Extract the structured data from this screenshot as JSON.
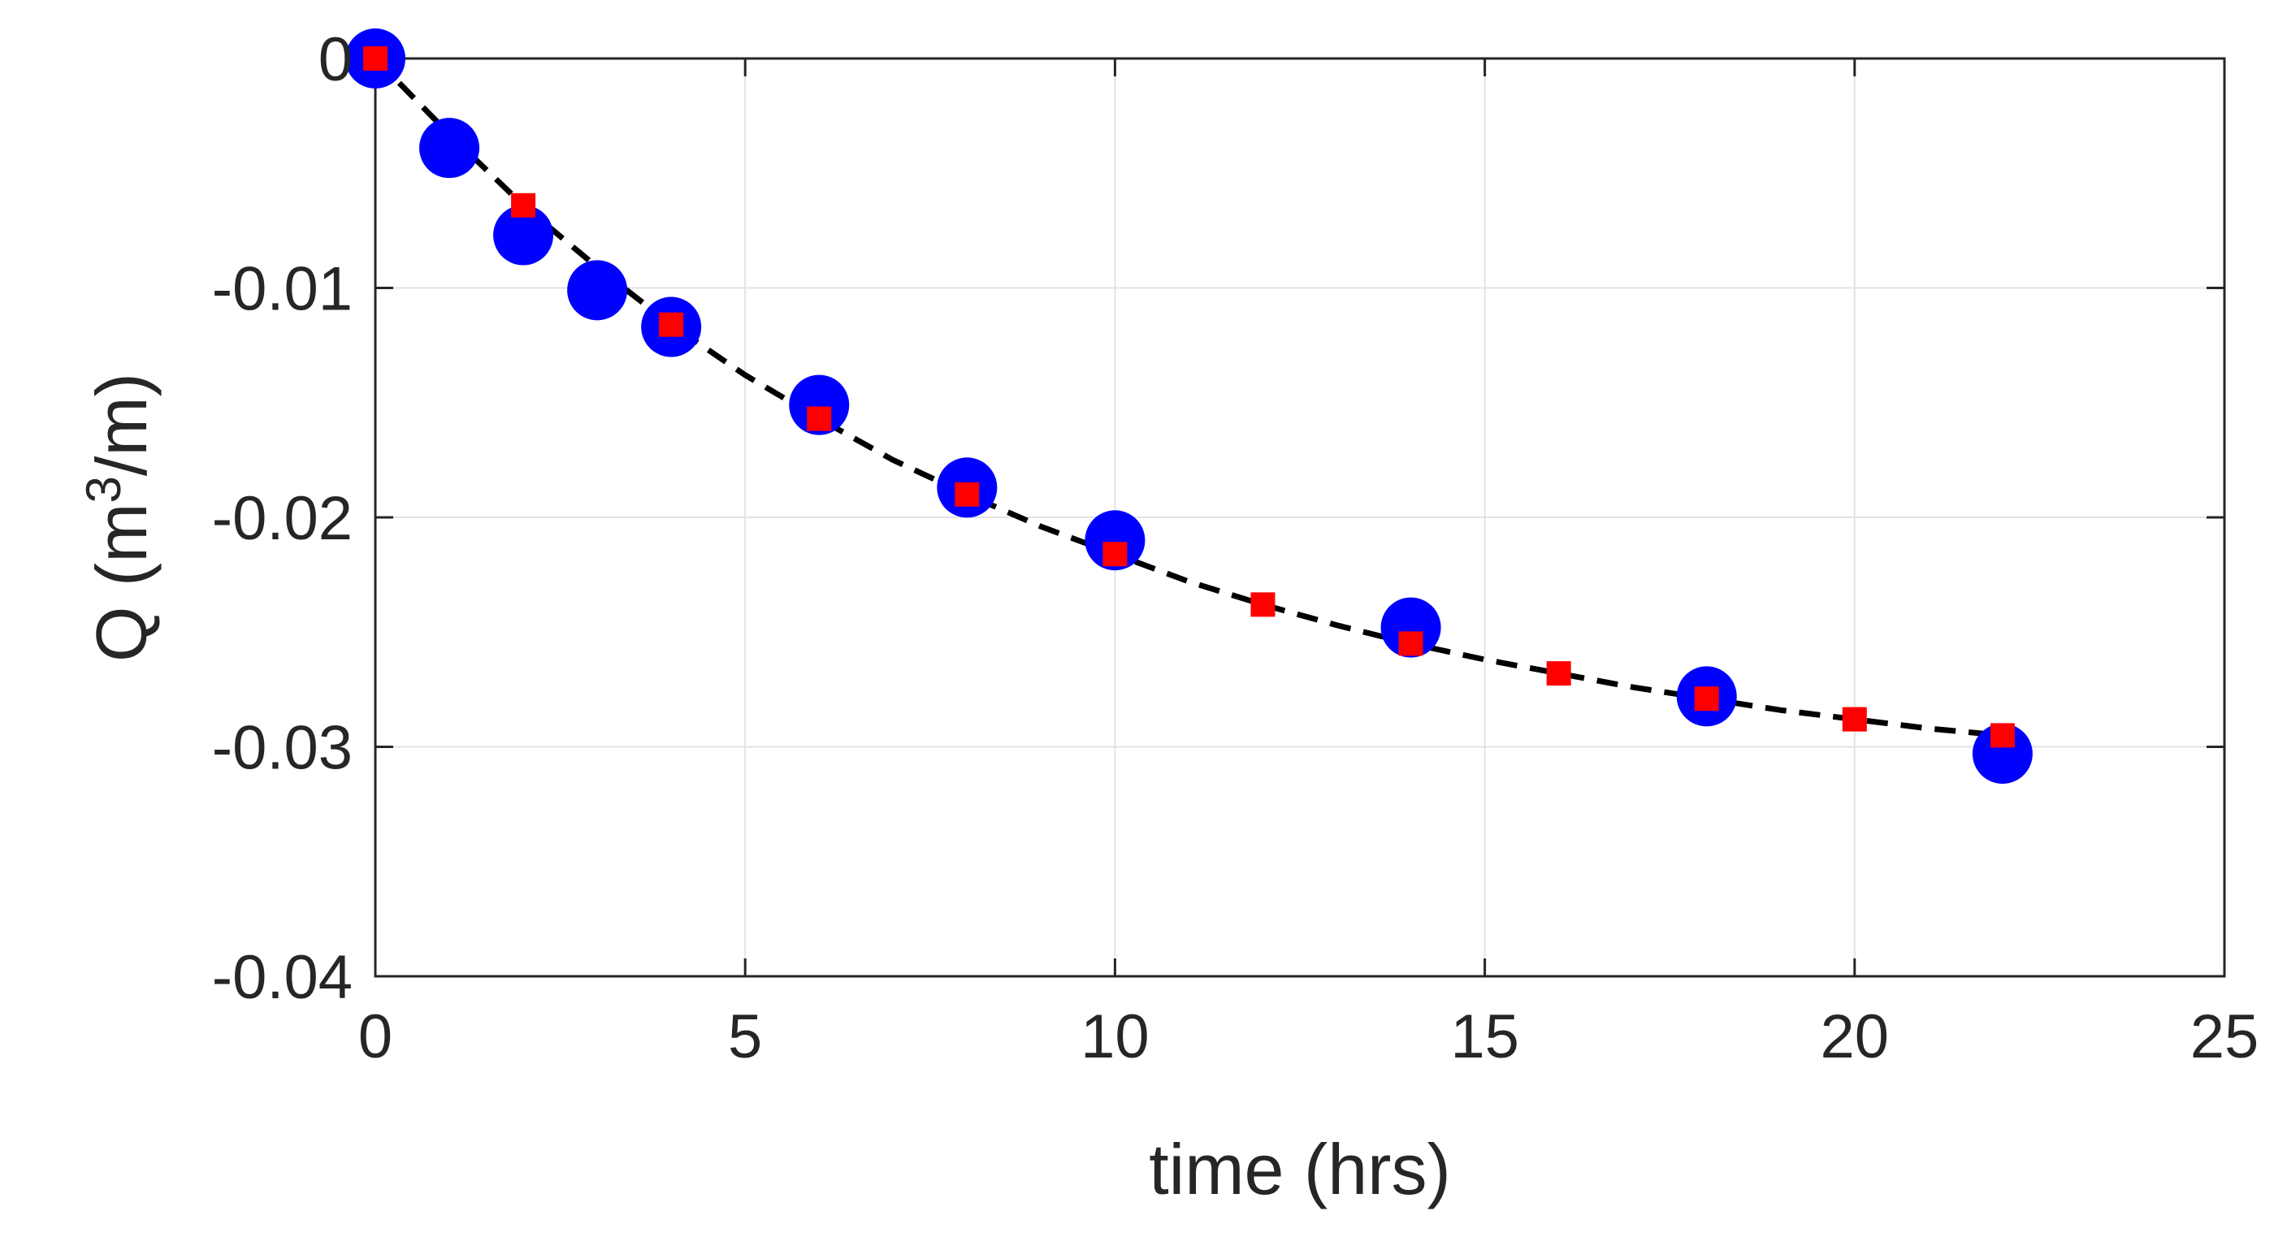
{
  "chart_data": {
    "type": "scatter",
    "title": "",
    "xlabel": "time (hrs)",
    "ylabel": {
      "prefix": "Q (m",
      "superscript": "3",
      "suffix": "/m)"
    },
    "xlim": [
      0,
      25
    ],
    "ylim": [
      -0.04,
      0
    ],
    "xticks": [
      0,
      5,
      10,
      15,
      20,
      25
    ],
    "yticks": [
      0,
      -0.01,
      -0.02,
      -0.03,
      -0.04
    ],
    "xtick_labels": [
      "0",
      "5",
      "10",
      "15",
      "20",
      "25"
    ],
    "ytick_labels": [
      "0",
      "-0.01",
      "-0.02",
      "-0.03",
      "-0.04"
    ],
    "grid": true,
    "series": [
      {
        "marker": "circle",
        "color": "#0000ff",
        "x": [
          0,
          1,
          2,
          3,
          4,
          6,
          8,
          10,
          14,
          18,
          22
        ],
        "y": [
          0,
          -0.0039,
          -0.0077,
          -0.0101,
          -0.0117,
          -0.0151,
          -0.0187,
          -0.021,
          -0.0248,
          -0.0278,
          -0.0303
        ]
      },
      {
        "marker": "square",
        "color": "#ff0000",
        "x": [
          0,
          2,
          4,
          6,
          8,
          10,
          12,
          14,
          16,
          18,
          20,
          22
        ],
        "y": [
          0,
          -0.0064,
          -0.0116,
          -0.0157,
          -0.019,
          -0.0216,
          -0.0238,
          -0.0255,
          -0.0268,
          -0.0279,
          -0.0288,
          -0.0295
        ]
      },
      {
        "marker": "none",
        "line": "dashed",
        "color": "#000000",
        "x": [
          0,
          1,
          2,
          3,
          4,
          5,
          6,
          7,
          8,
          9,
          10,
          11,
          12,
          13,
          14,
          15,
          16,
          17,
          18,
          19,
          20,
          21,
          22
        ],
        "y": [
          0,
          -0.0033,
          -0.0064,
          -0.0091,
          -0.0116,
          -0.0138,
          -0.0157,
          -0.0175,
          -0.019,
          -0.0204,
          -0.0216,
          -0.0228,
          -0.0238,
          -0.0247,
          -0.0255,
          -0.0262,
          -0.0268,
          -0.0274,
          -0.0279,
          -0.0284,
          -0.0288,
          -0.0292,
          -0.0295
        ]
      }
    ]
  }
}
